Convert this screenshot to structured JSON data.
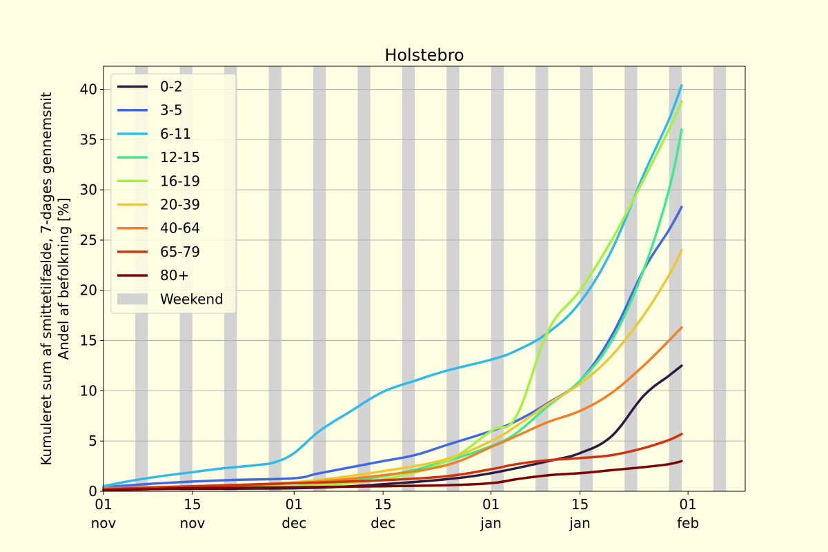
{
  "chart_data": {
    "type": "line",
    "title": "Holstebro",
    "ylabel_line1": "Kumuleret sum af smittetilfælde, 7-dages gennemsnit",
    "ylabel_line2": "Andel af befolkning [%]",
    "xlabel": "",
    "xlim": [
      "2021-11-01",
      "2022-02-10"
    ],
    "ylim": [
      0,
      42.3
    ],
    "yticks": [
      0,
      5,
      10,
      15,
      20,
      25,
      30,
      35,
      40
    ],
    "xticks": [
      {
        "date": "2021-11-01",
        "day": "01",
        "month": "nov"
      },
      {
        "date": "2021-11-15",
        "day": "15",
        "month": "nov"
      },
      {
        "date": "2021-12-01",
        "day": "01",
        "month": "dec"
      },
      {
        "date": "2021-12-15",
        "day": "15",
        "month": "dec"
      },
      {
        "date": "2022-01-01",
        "day": "01",
        "month": "jan"
      },
      {
        "date": "2022-01-15",
        "day": "15",
        "month": "jan"
      },
      {
        "date": "2022-02-01",
        "day": "01",
        "month": "feb"
      }
    ],
    "grid": "horizontal",
    "legend_position": "upper-left",
    "weekend_label": "Weekend",
    "weekend_color": "#d3d3d3",
    "weekends": [
      "2021-11-06",
      "2021-11-13",
      "2021-11-20",
      "2021-11-27",
      "2021-12-04",
      "2021-12-11",
      "2021-12-18",
      "2021-12-25",
      "2022-01-01",
      "2022-01-08",
      "2022-01-15",
      "2022-01-22",
      "2022-01-29",
      "2022-02-05"
    ],
    "series": [
      {
        "name": "0-2",
        "color": "#2d1a40",
        "x": [
          "2021-11-01",
          "2021-11-15",
          "2021-12-01",
          "2021-12-10",
          "2021-12-15",
          "2021-12-25",
          "2022-01-01",
          "2022-01-10",
          "2022-01-15",
          "2022-01-20",
          "2022-01-25",
          "2022-01-29",
          "2022-01-31"
        ],
        "values": [
          0.2,
          0.25,
          0.3,
          0.5,
          0.7,
          1.2,
          1.8,
          3.0,
          3.8,
          5.5,
          9.5,
          11.5,
          12.5
        ]
      },
      {
        "name": "3-5",
        "color": "#4169e1",
        "x": [
          "2021-11-01",
          "2021-11-10",
          "2021-11-20",
          "2021-12-01",
          "2021-12-05",
          "2021-12-15",
          "2021-12-20",
          "2021-12-25",
          "2022-01-01",
          "2022-01-05",
          "2022-01-10",
          "2022-01-15",
          "2022-01-20",
          "2022-01-25",
          "2022-01-29",
          "2022-01-31"
        ],
        "values": [
          0.4,
          0.8,
          1.1,
          1.3,
          1.8,
          3.0,
          3.6,
          4.6,
          6.0,
          7.0,
          8.8,
          11.0,
          15.5,
          22.0,
          26.0,
          28.3
        ]
      },
      {
        "name": "6-11",
        "color": "#2ebbe9",
        "x": [
          "2021-11-01",
          "2021-11-05",
          "2021-11-10",
          "2021-11-15",
          "2021-11-20",
          "2021-11-25",
          "2021-11-28",
          "2021-12-01",
          "2021-12-05",
          "2021-12-10",
          "2021-12-15",
          "2021-12-20",
          "2021-12-25",
          "2022-01-01",
          "2022-01-05",
          "2022-01-10",
          "2022-01-15",
          "2022-01-20",
          "2022-01-25",
          "2022-01-29",
          "2022-01-31"
        ],
        "values": [
          0.5,
          1.0,
          1.5,
          1.9,
          2.3,
          2.6,
          2.9,
          3.8,
          6.0,
          8.0,
          9.9,
          11.0,
          12.0,
          13.1,
          14.0,
          15.8,
          18.8,
          24.0,
          31.5,
          37.0,
          40.4
        ]
      },
      {
        "name": "12-15",
        "color": "#3eea8f",
        "x": [
          "2021-11-01",
          "2021-11-15",
          "2021-12-01",
          "2021-12-15",
          "2021-12-25",
          "2022-01-01",
          "2022-01-05",
          "2022-01-10",
          "2022-01-15",
          "2022-01-20",
          "2022-01-25",
          "2022-01-29",
          "2022-01-31"
        ],
        "values": [
          0.3,
          0.35,
          0.5,
          1.5,
          3.0,
          4.5,
          5.8,
          8.5,
          11.0,
          15.0,
          22.0,
          30.0,
          36.0
        ]
      },
      {
        "name": "16-19",
        "color": "#a3f23f",
        "x": [
          "2021-11-01",
          "2021-11-15",
          "2021-12-01",
          "2021-12-15",
          "2021-12-25",
          "2022-01-01",
          "2022-01-05",
          "2022-01-10",
          "2022-01-15",
          "2022-01-20",
          "2022-01-25",
          "2022-01-29",
          "2022-01-31"
        ],
        "values": [
          0.3,
          0.4,
          0.5,
          1.2,
          3.0,
          6.0,
          7.5,
          16.0,
          20.0,
          25.0,
          31.0,
          36.0,
          38.8
        ]
      },
      {
        "name": "20-39",
        "color": "#ecc832",
        "x": [
          "2021-11-01",
          "2021-11-15",
          "2021-12-01",
          "2021-12-15",
          "2021-12-25",
          "2022-01-01",
          "2022-01-05",
          "2022-01-10",
          "2022-01-15",
          "2022-01-20",
          "2022-01-25",
          "2022-01-29",
          "2022-01-31"
        ],
        "values": [
          0.3,
          0.5,
          0.9,
          2.0,
          3.2,
          5.0,
          6.5,
          8.7,
          10.7,
          13.5,
          17.5,
          21.5,
          24.0
        ]
      },
      {
        "name": "40-64",
        "color": "#f08128",
        "x": [
          "2021-11-01",
          "2021-11-15",
          "2021-12-01",
          "2021-12-15",
          "2021-12-25",
          "2022-01-01",
          "2022-01-05",
          "2022-01-10",
          "2022-01-15",
          "2022-01-20",
          "2022-01-25",
          "2022-01-29",
          "2022-01-31"
        ],
        "values": [
          0.3,
          0.5,
          0.8,
          1.6,
          2.6,
          4.4,
          5.5,
          6.9,
          8.0,
          9.8,
          12.5,
          15.0,
          16.3
        ]
      },
      {
        "name": "65-79",
        "color": "#d1330f",
        "x": [
          "2021-11-01",
          "2021-11-15",
          "2021-12-01",
          "2021-12-15",
          "2021-12-25",
          "2022-01-01",
          "2022-01-05",
          "2022-01-10",
          "2022-01-15",
          "2022-01-20",
          "2022-01-25",
          "2022-01-29",
          "2022-01-31"
        ],
        "values": [
          0.2,
          0.5,
          0.8,
          1.1,
          1.5,
          2.2,
          2.7,
          3.1,
          3.3,
          3.6,
          4.3,
          5.1,
          5.7
        ]
      },
      {
        "name": "80+",
        "color": "#7a0403",
        "x": [
          "2021-11-01",
          "2021-11-15",
          "2021-12-01",
          "2021-12-15",
          "2021-12-25",
          "2022-01-01",
          "2022-01-05",
          "2022-01-10",
          "2022-01-15",
          "2022-01-20",
          "2022-01-25",
          "2022-01-29",
          "2022-01-31"
        ],
        "values": [
          0.1,
          0.3,
          0.4,
          0.5,
          0.6,
          0.8,
          1.2,
          1.6,
          1.8,
          2.1,
          2.4,
          2.7,
          3.0
        ]
      }
    ]
  }
}
